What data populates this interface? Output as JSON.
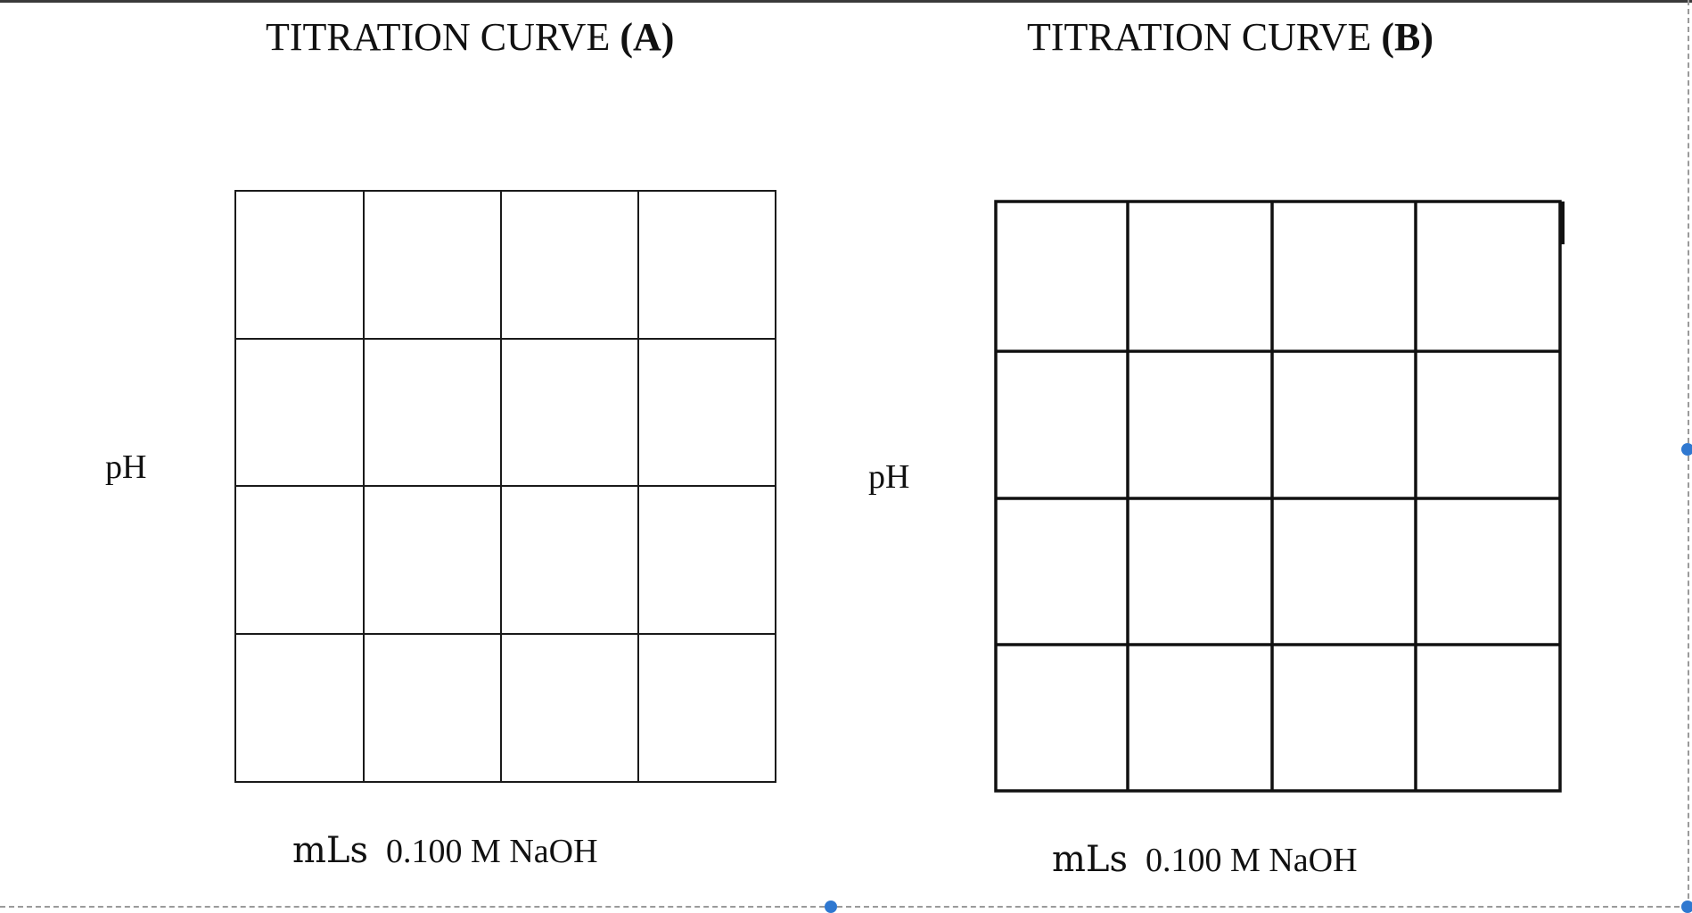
{
  "panels": [
    {
      "title_prefix": "TITRATION CURVE",
      "title_tag": "(A)",
      "y_label": "pH",
      "x_label_units": "mLs",
      "x_label_reagent": "0.100 M NaOH"
    },
    {
      "title_prefix": "TITRATION CURVE",
      "title_tag": "(B)",
      "y_label": "pH",
      "x_label_units": "mLs",
      "x_label_reagent": "0.100 M NaOH"
    }
  ],
  "grid": {
    "rows": 4,
    "columns": 4
  },
  "colors": {
    "grid_line": "#1a1a1a",
    "selection_handle": "#2f78d0",
    "dashed_border": "#9a9a9a"
  }
}
